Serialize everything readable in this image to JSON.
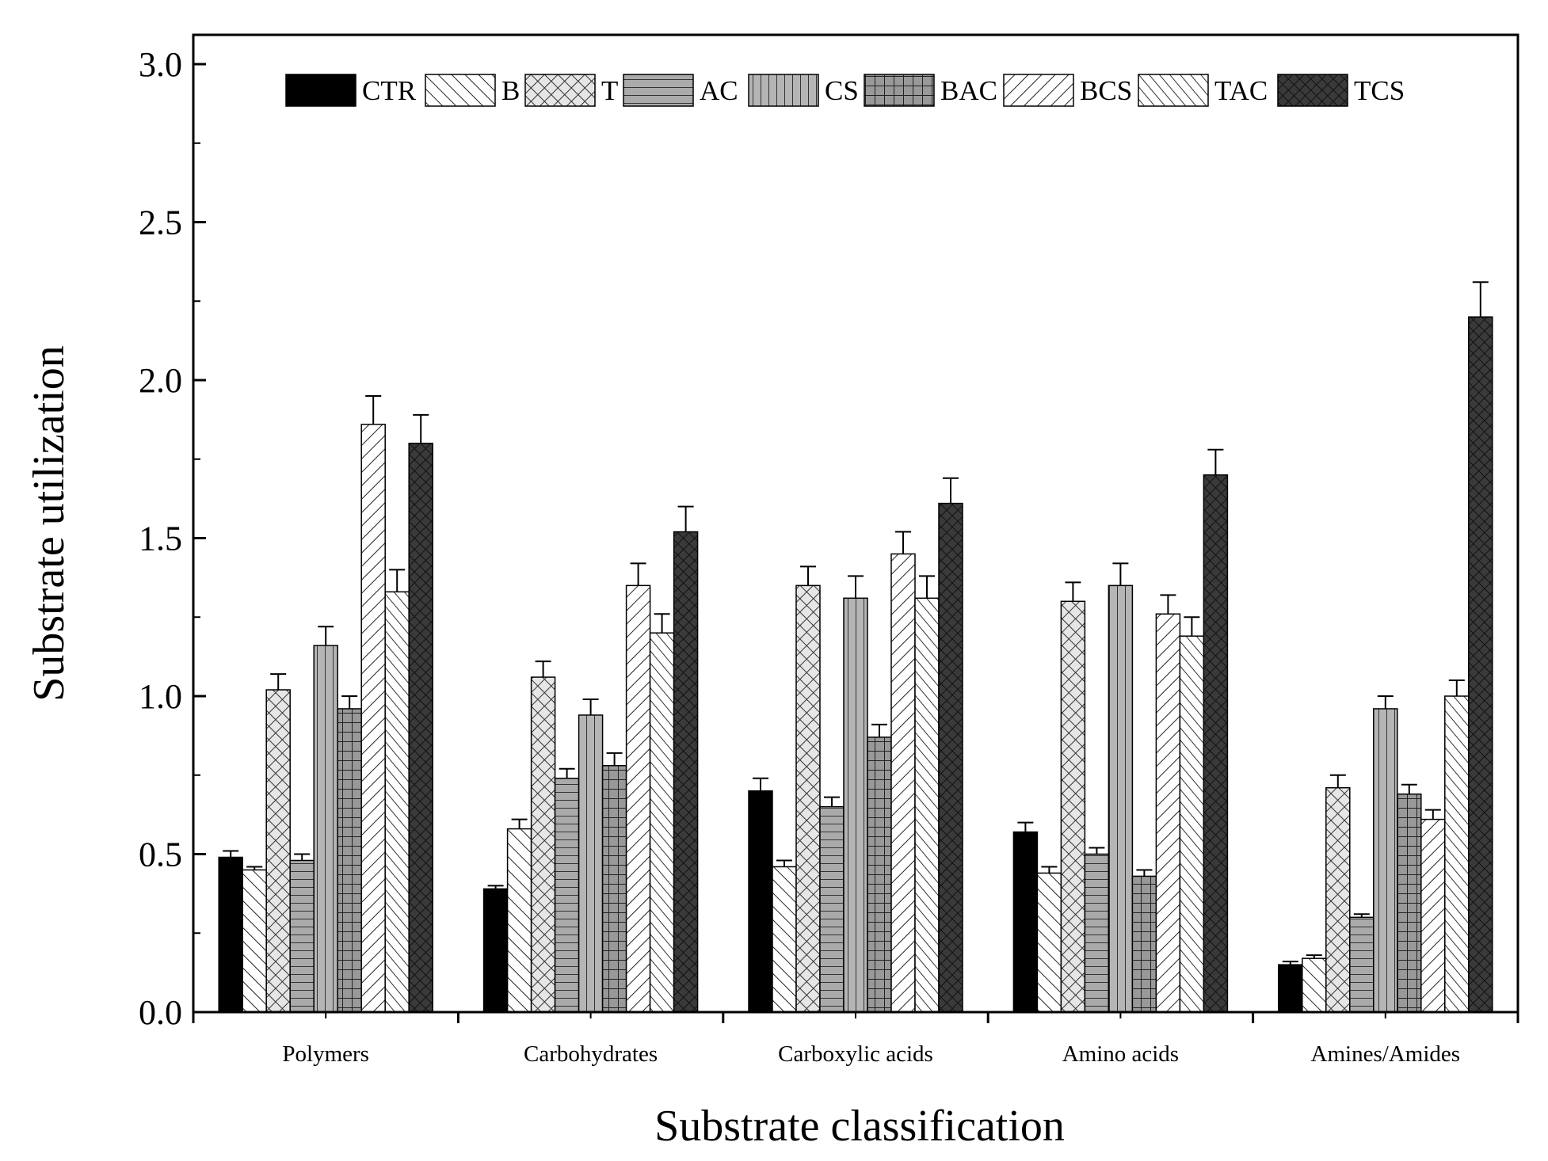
{
  "chart_data": {
    "type": "bar",
    "title": "",
    "xlabel": "Substrate classification",
    "ylabel": "Substrate utilization",
    "ylim": [
      0,
      3.0
    ],
    "yticks": [
      "0.0",
      "0.5",
      "1.0",
      "1.5",
      "2.0",
      "2.5",
      "3.0"
    ],
    "grid": false,
    "legend_position": "top",
    "categories": [
      "Polymers",
      "Carbohydrates",
      "Carboxylic  acids",
      "Amino acids",
      "Amines/Amides"
    ],
    "series": [
      {
        "name": "CTR",
        "pattern": "solid-black",
        "values": [
          0.49,
          0.39,
          0.7,
          0.57,
          0.15
        ],
        "errors": [
          0.02,
          0.01,
          0.04,
          0.03,
          0.01
        ]
      },
      {
        "name": "B",
        "pattern": "back-diagonal",
        "values": [
          0.45,
          0.58,
          0.46,
          0.44,
          0.17
        ],
        "errors": [
          0.01,
          0.03,
          0.02,
          0.02,
          0.01
        ]
      },
      {
        "name": "T",
        "pattern": "crosshatch-light",
        "values": [
          1.02,
          1.06,
          1.35,
          1.3,
          0.71
        ],
        "errors": [
          0.05,
          0.05,
          0.06,
          0.06,
          0.04
        ]
      },
      {
        "name": "AC",
        "pattern": "horizontal",
        "values": [
          0.48,
          0.74,
          0.65,
          0.5,
          0.3
        ],
        "errors": [
          0.02,
          0.03,
          0.03,
          0.02,
          0.01
        ]
      },
      {
        "name": "CS",
        "pattern": "vertical",
        "values": [
          1.16,
          0.94,
          1.31,
          1.35,
          0.96
        ],
        "errors": [
          0.06,
          0.05,
          0.07,
          0.07,
          0.04
        ]
      },
      {
        "name": "BAC",
        "pattern": "grid",
        "values": [
          0.96,
          0.78,
          0.87,
          0.43,
          0.69
        ],
        "errors": [
          0.04,
          0.04,
          0.04,
          0.02,
          0.03
        ]
      },
      {
        "name": "BCS",
        "pattern": "forward-diagonal",
        "values": [
          1.86,
          1.35,
          1.45,
          1.26,
          0.61
        ],
        "errors": [
          0.09,
          0.07,
          0.07,
          0.06,
          0.03
        ]
      },
      {
        "name": "TAC",
        "pattern": "back-diagonal-dense",
        "values": [
          1.33,
          1.2,
          1.31,
          1.19,
          1.0
        ],
        "errors": [
          0.07,
          0.06,
          0.07,
          0.06,
          0.05
        ]
      },
      {
        "name": "TCS",
        "pattern": "crosshatch-dark",
        "values": [
          1.8,
          1.52,
          1.61,
          1.7,
          2.2
        ],
        "errors": [
          0.09,
          0.08,
          0.08,
          0.08,
          0.11
        ]
      }
    ]
  }
}
